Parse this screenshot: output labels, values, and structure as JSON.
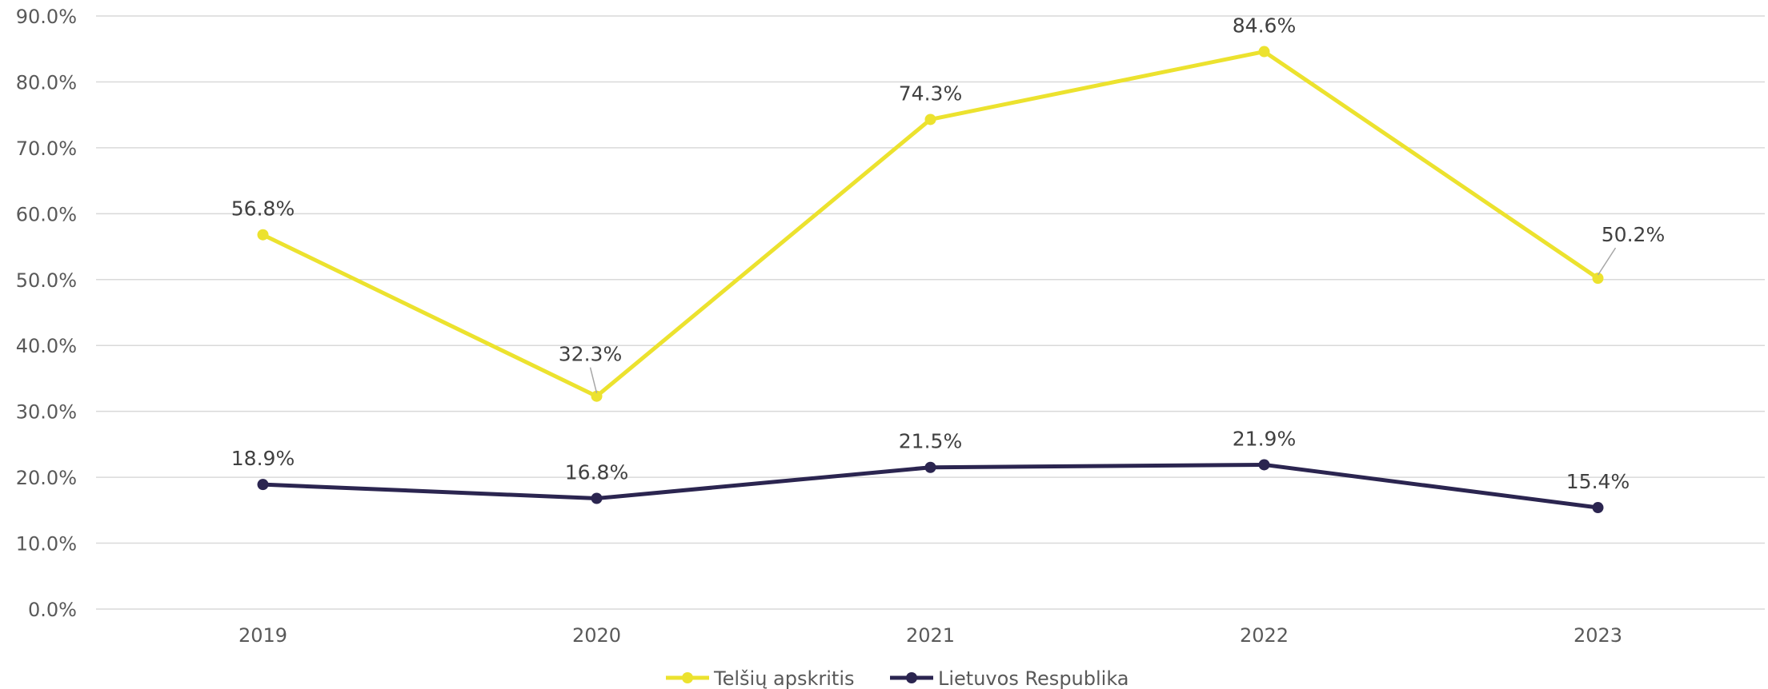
{
  "chart_data": {
    "type": "line",
    "title": "",
    "xlabel": "",
    "ylabel": "",
    "categories": [
      "2019",
      "2020",
      "2021",
      "2022",
      "2023"
    ],
    "ylim": [
      0,
      90
    ],
    "y_ticks": [
      0,
      10,
      20,
      30,
      40,
      50,
      60,
      70,
      80,
      90
    ],
    "y_tick_labels": [
      "0.0%",
      "10.0%",
      "20.0%",
      "30.0%",
      "40.0%",
      "50.0%",
      "60.0%",
      "70.0%",
      "80.0%",
      "90.0%"
    ],
    "grid": true,
    "legend_position": "bottom-center",
    "series": [
      {
        "name": "Telšių apskritis",
        "color": "#ECE22E",
        "values": [
          56.8,
          32.3,
          74.3,
          84.6,
          50.2
        ],
        "labels": [
          "56.8%",
          "32.3%",
          "74.3%",
          "84.6%",
          "50.2%"
        ]
      },
      {
        "name": "Lietuvos Respublika",
        "color": "#2B2550",
        "values": [
          18.9,
          16.8,
          21.5,
          21.9,
          15.4
        ],
        "labels": [
          "18.9%",
          "16.8%",
          "21.5%",
          "21.9%",
          "15.4%"
        ]
      }
    ]
  }
}
